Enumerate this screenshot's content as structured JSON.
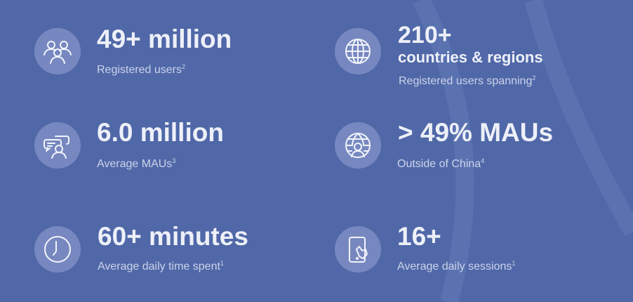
{
  "colors": {
    "background": "#5068a8",
    "icon_circle": "#7788c0",
    "text": "#eef0f8",
    "subtext": "#cdd3ea"
  },
  "stats": [
    {
      "icon": "users-group-icon",
      "value": "49+ million",
      "label": "Registered users",
      "note": "2"
    },
    {
      "icon": "globe-icon",
      "value": "210+",
      "value_line2": "countries & regions",
      "label": "Registered users spanning",
      "note": "2"
    },
    {
      "icon": "chat-user-icon",
      "value": "6.0 million",
      "label": "Average MAUs",
      "note": "3"
    },
    {
      "icon": "globe-user-icon",
      "value": "> 49% MAUs",
      "label": "Outside of China",
      "note": "4"
    },
    {
      "icon": "clock-icon",
      "value": "60+ minutes",
      "label": "Average daily time spent",
      "note": "1"
    },
    {
      "icon": "phone-tap-icon",
      "value": "16+",
      "label": "Average daily sessions",
      "note": "1"
    }
  ]
}
